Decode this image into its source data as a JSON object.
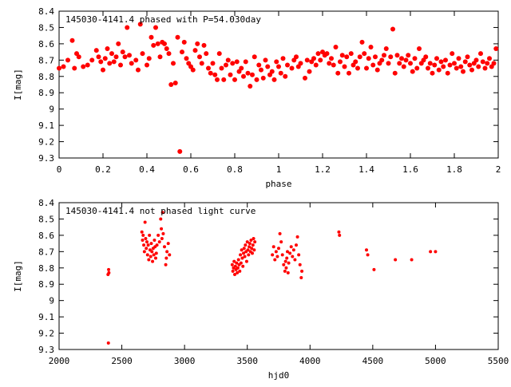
{
  "chart_data": [
    {
      "type": "scatter",
      "title": "145030-4141.4 phased with P=54.030day",
      "xlabel": "phase",
      "ylabel": "I[mag]",
      "xlim": [
        0,
        2
      ],
      "ylim": [
        8.4,
        9.3
      ],
      "y_inverted": true,
      "x_ticks": [
        "0",
        "0.2",
        "0.4",
        "0.6",
        "0.8",
        "1",
        "1.2",
        "1.4",
        "1.6",
        "1.8",
        "2"
      ],
      "y_ticks": [
        "8.4",
        "8.5",
        "8.6",
        "8.7",
        "8.8",
        "8.9",
        "9",
        "9.1",
        "9.2",
        "9.3"
      ],
      "grid": false,
      "marker_color": "#ff0000",
      "points": [
        [
          0.0,
          8.75
        ],
        [
          0.02,
          8.74
        ],
        [
          0.04,
          8.7
        ],
        [
          0.06,
          8.58
        ],
        [
          0.07,
          8.75
        ],
        [
          0.08,
          8.66
        ],
        [
          0.09,
          8.68
        ],
        [
          0.11,
          8.74
        ],
        [
          0.13,
          8.73
        ],
        [
          0.15,
          8.7
        ],
        [
          0.17,
          8.64
        ],
        [
          0.18,
          8.68
        ],
        [
          0.19,
          8.71
        ],
        [
          0.2,
          8.76
        ],
        [
          0.21,
          8.69
        ],
        [
          0.22,
          8.63
        ],
        [
          0.23,
          8.72
        ],
        [
          0.24,
          8.66
        ],
        [
          0.25,
          8.71
        ],
        [
          0.26,
          8.68
        ],
        [
          0.27,
          8.6
        ],
        [
          0.28,
          8.73
        ],
        [
          0.29,
          8.65
        ],
        [
          0.3,
          8.68
        ],
        [
          0.31,
          8.5
        ],
        [
          0.32,
          8.67
        ],
        [
          0.33,
          8.72
        ],
        [
          0.35,
          8.7
        ],
        [
          0.36,
          8.76
        ],
        [
          0.37,
          8.48
        ],
        [
          0.38,
          8.66
        ],
        [
          0.4,
          8.73
        ],
        [
          0.41,
          8.69
        ],
        [
          0.42,
          8.56
        ],
        [
          0.43,
          8.61
        ],
        [
          0.44,
          8.5
        ],
        [
          0.45,
          8.6
        ],
        [
          0.46,
          8.68
        ],
        [
          0.47,
          8.59
        ],
        [
          0.48,
          8.6
        ],
        [
          0.49,
          8.63
        ],
        [
          0.5,
          8.66
        ],
        [
          0.51,
          8.85
        ],
        [
          0.52,
          8.72
        ],
        [
          0.53,
          8.84
        ],
        [
          0.54,
          8.56
        ],
        [
          0.55,
          9.26
        ],
        [
          0.56,
          8.65
        ],
        [
          0.57,
          8.59
        ],
        [
          0.58,
          8.69
        ],
        [
          0.59,
          8.72
        ],
        [
          0.6,
          8.74
        ],
        [
          0.61,
          8.76
        ],
        [
          0.62,
          8.64
        ],
        [
          0.63,
          8.6
        ],
        [
          0.64,
          8.68
        ],
        [
          0.65,
          8.72
        ],
        [
          0.66,
          8.61
        ],
        [
          0.67,
          8.66
        ],
        [
          0.68,
          8.75
        ],
        [
          0.69,
          8.78
        ],
        [
          0.7,
          8.72
        ],
        [
          0.71,
          8.79
        ],
        [
          0.72,
          8.82
        ],
        [
          0.73,
          8.66
        ],
        [
          0.74,
          8.75
        ],
        [
          0.75,
          8.82
        ],
        [
          0.76,
          8.73
        ],
        [
          0.77,
          8.7
        ],
        [
          0.78,
          8.79
        ],
        [
          0.79,
          8.72
        ],
        [
          0.8,
          8.82
        ],
        [
          0.81,
          8.71
        ],
        [
          0.82,
          8.77
        ],
        [
          0.83,
          8.75
        ],
        [
          0.84,
          8.8
        ],
        [
          0.85,
          8.71
        ],
        [
          0.86,
          8.78
        ],
        [
          0.87,
          8.86
        ],
        [
          0.88,
          8.79
        ],
        [
          0.89,
          8.68
        ],
        [
          0.9,
          8.82
        ],
        [
          0.91,
          8.73
        ],
        [
          0.92,
          8.76
        ],
        [
          0.93,
          8.81
        ],
        [
          0.94,
          8.7
        ],
        [
          0.95,
          8.74
        ],
        [
          0.96,
          8.79
        ],
        [
          0.97,
          8.77
        ],
        [
          0.98,
          8.82
        ],
        [
          0.99,
          8.71
        ],
        [
          1.0,
          8.74
        ],
        [
          1.01,
          8.78
        ],
        [
          1.02,
          8.69
        ],
        [
          1.03,
          8.8
        ],
        [
          1.04,
          8.73
        ],
        [
          1.06,
          8.75
        ],
        [
          1.07,
          8.7
        ],
        [
          1.08,
          8.68
        ],
        [
          1.09,
          8.74
        ],
        [
          1.1,
          8.72
        ],
        [
          1.12,
          8.81
        ],
        [
          1.13,
          8.7
        ],
        [
          1.14,
          8.77
        ],
        [
          1.15,
          8.71
        ],
        [
          1.16,
          8.69
        ],
        [
          1.17,
          8.73
        ],
        [
          1.18,
          8.66
        ],
        [
          1.19,
          8.7
        ],
        [
          1.2,
          8.65
        ],
        [
          1.21,
          8.67
        ],
        [
          1.22,
          8.66
        ],
        [
          1.23,
          8.72
        ],
        [
          1.24,
          8.69
        ],
        [
          1.25,
          8.73
        ],
        [
          1.26,
          8.62
        ],
        [
          1.27,
          8.78
        ],
        [
          1.28,
          8.71
        ],
        [
          1.29,
          8.67
        ],
        [
          1.3,
          8.74
        ],
        [
          1.31,
          8.68
        ],
        [
          1.32,
          8.78
        ],
        [
          1.33,
          8.66
        ],
        [
          1.34,
          8.73
        ],
        [
          1.35,
          8.71
        ],
        [
          1.36,
          8.75
        ],
        [
          1.37,
          8.68
        ],
        [
          1.38,
          8.59
        ],
        [
          1.39,
          8.66
        ],
        [
          1.4,
          8.75
        ],
        [
          1.41,
          8.69
        ],
        [
          1.42,
          8.62
        ],
        [
          1.43,
          8.73
        ],
        [
          1.44,
          8.68
        ],
        [
          1.45,
          8.76
        ],
        [
          1.46,
          8.72
        ],
        [
          1.47,
          8.7
        ],
        [
          1.48,
          8.67
        ],
        [
          1.49,
          8.63
        ],
        [
          1.5,
          8.72
        ],
        [
          1.51,
          8.68
        ],
        [
          1.52,
          8.51
        ],
        [
          1.53,
          8.78
        ],
        [
          1.54,
          8.67
        ],
        [
          1.55,
          8.72
        ],
        [
          1.56,
          8.69
        ],
        [
          1.57,
          8.74
        ],
        [
          1.58,
          8.7
        ],
        [
          1.59,
          8.67
        ],
        [
          1.6,
          8.72
        ],
        [
          1.61,
          8.77
        ],
        [
          1.62,
          8.69
        ],
        [
          1.63,
          8.75
        ],
        [
          1.64,
          8.63
        ],
        [
          1.65,
          8.72
        ],
        [
          1.66,
          8.7
        ],
        [
          1.67,
          8.68
        ],
        [
          1.68,
          8.75
        ],
        [
          1.69,
          8.72
        ],
        [
          1.7,
          8.78
        ],
        [
          1.71,
          8.73
        ],
        [
          1.72,
          8.69
        ],
        [
          1.73,
          8.76
        ],
        [
          1.74,
          8.71
        ],
        [
          1.75,
          8.74
        ],
        [
          1.76,
          8.7
        ],
        [
          1.77,
          8.78
        ],
        [
          1.78,
          8.73
        ],
        [
          1.79,
          8.66
        ],
        [
          1.8,
          8.72
        ],
        [
          1.81,
          8.75
        ],
        [
          1.82,
          8.69
        ],
        [
          1.83,
          8.74
        ],
        [
          1.84,
          8.77
        ],
        [
          1.85,
          8.71
        ],
        [
          1.86,
          8.68
        ],
        [
          1.87,
          8.73
        ],
        [
          1.88,
          8.76
        ],
        [
          1.89,
          8.72
        ],
        [
          1.9,
          8.7
        ],
        [
          1.91,
          8.74
        ],
        [
          1.92,
          8.66
        ],
        [
          1.93,
          8.71
        ],
        [
          1.94,
          8.75
        ],
        [
          1.95,
          8.72
        ],
        [
          1.96,
          8.69
        ],
        [
          1.97,
          8.74
        ],
        [
          1.98,
          8.72
        ],
        [
          1.99,
          8.63
        ]
      ]
    },
    {
      "type": "scatter",
      "title": "145030-4141.4 not phased light curve",
      "xlabel": "hjd0",
      "ylabel": "I[mag]",
      "xlim": [
        2000,
        5500
      ],
      "ylim": [
        8.4,
        9.3
      ],
      "y_inverted": true,
      "x_ticks": [
        "2000",
        "2500",
        "3000",
        "3500",
        "4000",
        "4500",
        "5000",
        "5500"
      ],
      "y_ticks": [
        "8.4",
        "8.5",
        "8.6",
        "8.7",
        "8.8",
        "8.9",
        "9",
        "9.1",
        "9.2",
        "9.3"
      ],
      "grid": false,
      "marker_color": "#ff0000",
      "points": [
        [
          2390,
          8.84
        ],
        [
          2395,
          8.81
        ],
        [
          2397,
          8.83
        ],
        [
          2393,
          9.26
        ],
        [
          2660,
          8.58
        ],
        [
          2665,
          8.63
        ],
        [
          2670,
          8.6
        ],
        [
          2675,
          8.66
        ],
        [
          2680,
          8.7
        ],
        [
          2685,
          8.52
        ],
        [
          2690,
          8.62
        ],
        [
          2695,
          8.68
        ],
        [
          2700,
          8.64
        ],
        [
          2705,
          8.72
        ],
        [
          2710,
          8.66
        ],
        [
          2715,
          8.75
        ],
        [
          2720,
          8.6
        ],
        [
          2725,
          8.69
        ],
        [
          2730,
          8.73
        ],
        [
          2735,
          8.65
        ],
        [
          2740,
          8.7
        ],
        [
          2745,
          8.76
        ],
        [
          2750,
          8.68
        ],
        [
          2755,
          8.72
        ],
        [
          2760,
          8.63
        ],
        [
          2765,
          8.67
        ],
        [
          2770,
          8.74
        ],
        [
          2775,
          8.71
        ],
        [
          2780,
          8.66
        ],
        [
          2790,
          8.6
        ],
        [
          2800,
          8.64
        ],
        [
          2810,
          8.5
        ],
        [
          2815,
          8.56
        ],
        [
          2820,
          8.62
        ],
        [
          2825,
          8.46
        ],
        [
          2830,
          8.59
        ],
        [
          2840,
          8.67
        ],
        [
          2850,
          8.78
        ],
        [
          2855,
          8.74
        ],
        [
          2860,
          8.7
        ],
        [
          2870,
          8.65
        ],
        [
          2880,
          8.72
        ],
        [
          3380,
          8.78
        ],
        [
          3385,
          8.82
        ],
        [
          3390,
          8.8
        ],
        [
          3395,
          8.76
        ],
        [
          3400,
          8.84
        ],
        [
          3405,
          8.79
        ],
        [
          3410,
          8.81
        ],
        [
          3415,
          8.77
        ],
        [
          3420,
          8.83
        ],
        [
          3425,
          8.8
        ],
        [
          3430,
          8.75
        ],
        [
          3435,
          8.78
        ],
        [
          3440,
          8.82
        ],
        [
          3445,
          8.72
        ],
        [
          3450,
          8.77
        ],
        [
          3455,
          8.69
        ],
        [
          3460,
          8.74
        ],
        [
          3465,
          8.79
        ],
        [
          3470,
          8.71
        ],
        [
          3475,
          8.68
        ],
        [
          3480,
          8.73
        ],
        [
          3485,
          8.66
        ],
        [
          3490,
          8.7
        ],
        [
          3495,
          8.76
        ],
        [
          3500,
          8.64
        ],
        [
          3505,
          8.69
        ],
        [
          3510,
          8.72
        ],
        [
          3515,
          8.67
        ],
        [
          3520,
          8.65
        ],
        [
          3525,
          8.7
        ],
        [
          3530,
          8.63
        ],
        [
          3535,
          8.68
        ],
        [
          3540,
          8.71
        ],
        [
          3545,
          8.66
        ],
        [
          3550,
          8.62
        ],
        [
          3555,
          8.69
        ],
        [
          3560,
          8.64
        ],
        [
          3700,
          8.72
        ],
        [
          3710,
          8.67
        ],
        [
          3720,
          8.75
        ],
        [
          3730,
          8.7
        ],
        [
          3740,
          8.73
        ],
        [
          3750,
          8.68
        ],
        [
          3760,
          8.59
        ],
        [
          3770,
          8.64
        ],
        [
          3780,
          8.72
        ],
        [
          3790,
          8.78
        ],
        [
          3800,
          8.82
        ],
        [
          3805,
          8.76
        ],
        [
          3810,
          8.8
        ],
        [
          3815,
          8.74
        ],
        [
          3820,
          8.7
        ],
        [
          3825,
          8.83
        ],
        [
          3830,
          8.77
        ],
        [
          3840,
          8.71
        ],
        [
          3850,
          8.67
        ],
        [
          3860,
          8.73
        ],
        [
          3870,
          8.69
        ],
        [
          3880,
          8.75
        ],
        [
          3890,
          8.66
        ],
        [
          3900,
          8.61
        ],
        [
          3910,
          8.72
        ],
        [
          3920,
          8.78
        ],
        [
          3930,
          8.86
        ],
        [
          3935,
          8.82
        ],
        [
          4230,
          8.58
        ],
        [
          4235,
          8.6
        ],
        [
          4450,
          8.69
        ],
        [
          4460,
          8.72
        ],
        [
          4510,
          8.81
        ],
        [
          4680,
          8.75
        ],
        [
          4810,
          8.75
        ],
        [
          4960,
          8.7
        ],
        [
          5000,
          8.7
        ]
      ]
    }
  ]
}
